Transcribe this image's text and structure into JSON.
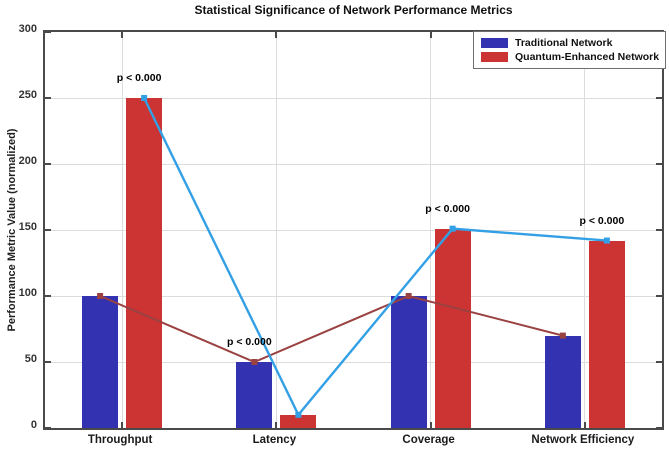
{
  "chart_data": {
    "type": "bar",
    "title": "Statistical Significance of Network Performance Metrics",
    "ylabel": "Performance Metric Value (normalized)",
    "xlabel": "",
    "categories": [
      "Throughput",
      "Latency",
      "Coverage",
      "Network Efficiency"
    ],
    "ylim": [
      0,
      300
    ],
    "y_ticks": [
      0,
      50,
      100,
      150,
      200,
      250,
      300
    ],
    "grid": true,
    "legend_position": "top-right",
    "series": [
      {
        "name": "Traditional Network",
        "bar_color": "#3333B2",
        "line_color": "#9A4242",
        "values": [
          100,
          50,
          100,
          70
        ]
      },
      {
        "name": "Quantum-Enhanced Network",
        "bar_color": "#CC3333",
        "line_color": "#33A0E6",
        "values": [
          250,
          10,
          151,
          142
        ]
      }
    ],
    "annotations": [
      {
        "text": "p < 0.000",
        "category": "Throughput"
      },
      {
        "text": "p < 0.000",
        "category": "Latency"
      },
      {
        "text": "p < 0.000",
        "category": "Coverage"
      },
      {
        "text": "p < 0.000",
        "category": "Network Efficiency"
      }
    ],
    "axis_color": "#4a4a4a",
    "grid_color": "#dcdcdc"
  }
}
